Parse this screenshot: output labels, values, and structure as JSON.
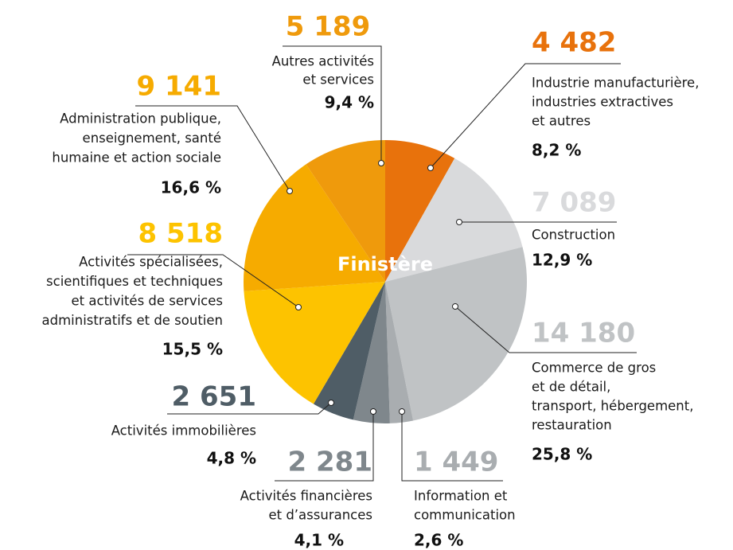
{
  "chart_data": {
    "type": "pie",
    "center_label": "Finistère",
    "categories": [
      [
        "Industrie manufacturière,",
        "industries extractives",
        "et autres"
      ],
      [
        "Construction"
      ],
      [
        "Commerce de gros",
        "et de détail,",
        "transport, hébergement,",
        "restauration"
      ],
      [
        "Information et",
        "communication"
      ],
      [
        "Activités financières",
        "et d’assurances"
      ],
      [
        "Activités immobilières"
      ],
      [
        "Activités spécialisées,",
        "scientifiques et techniques",
        "et activités de services",
        "administratifs et de soutien"
      ],
      [
        "Administration publique,",
        "enseignement, santé",
        "humaine et action sociale"
      ],
      [
        "Autres activités",
        "et services"
      ]
    ],
    "values": [
      4482,
      7089,
      14180,
      1449,
      2281,
      2651,
      8518,
      9141,
      5189
    ],
    "value_labels": [
      "4 482",
      "7 089",
      "14 180",
      "1 449",
      "2 281",
      "2 651",
      "8 518",
      "9 141",
      "5 189"
    ],
    "percentages": [
      8.2,
      12.9,
      25.8,
      2.6,
      4.1,
      4.8,
      15.5,
      16.6,
      9.4
    ],
    "percentage_labels": [
      "8,2 %",
      "12,9 %",
      "25,8 %",
      "2,6 %",
      "4,1 %",
      "4,8 %",
      "15,5 %",
      "16,6 %",
      "9,4 %"
    ],
    "colors": [
      "#e8720c",
      "#d9dadc",
      "#c0c3c5",
      "#a9adb0",
      "#7f878c",
      "#4f5d66",
      "#fdc300",
      "#f6ab00",
      "#ef9a0c"
    ]
  }
}
